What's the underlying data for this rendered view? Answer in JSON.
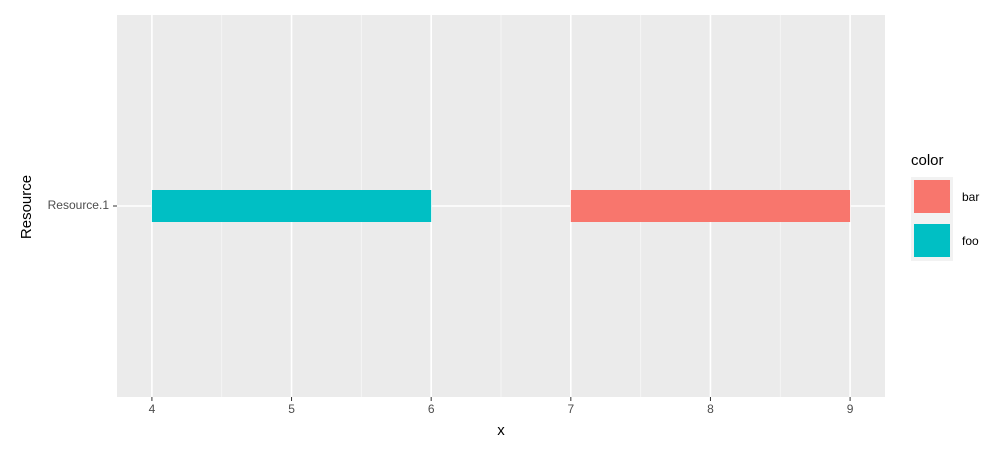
{
  "chart_data": {
    "type": "range-bar",
    "x_label": "x",
    "y_label": "Resource",
    "legend_title": "color",
    "categories": [
      "Resource.1"
    ],
    "series": [
      {
        "name": "bar",
        "color": "#F8766D",
        "start": [
          7
        ],
        "end": [
          9
        ]
      },
      {
        "name": "foo",
        "color": "#00BFC4",
        "start": [
          4
        ],
        "end": [
          6
        ]
      }
    ],
    "xlim": [
      3.75,
      9.25
    ],
    "xticks": [
      4,
      5,
      6,
      7,
      8,
      9
    ],
    "xminor": [
      4.5,
      5.5,
      6.5,
      7.5,
      8.5
    ],
    "grid": true,
    "legend": "right"
  }
}
